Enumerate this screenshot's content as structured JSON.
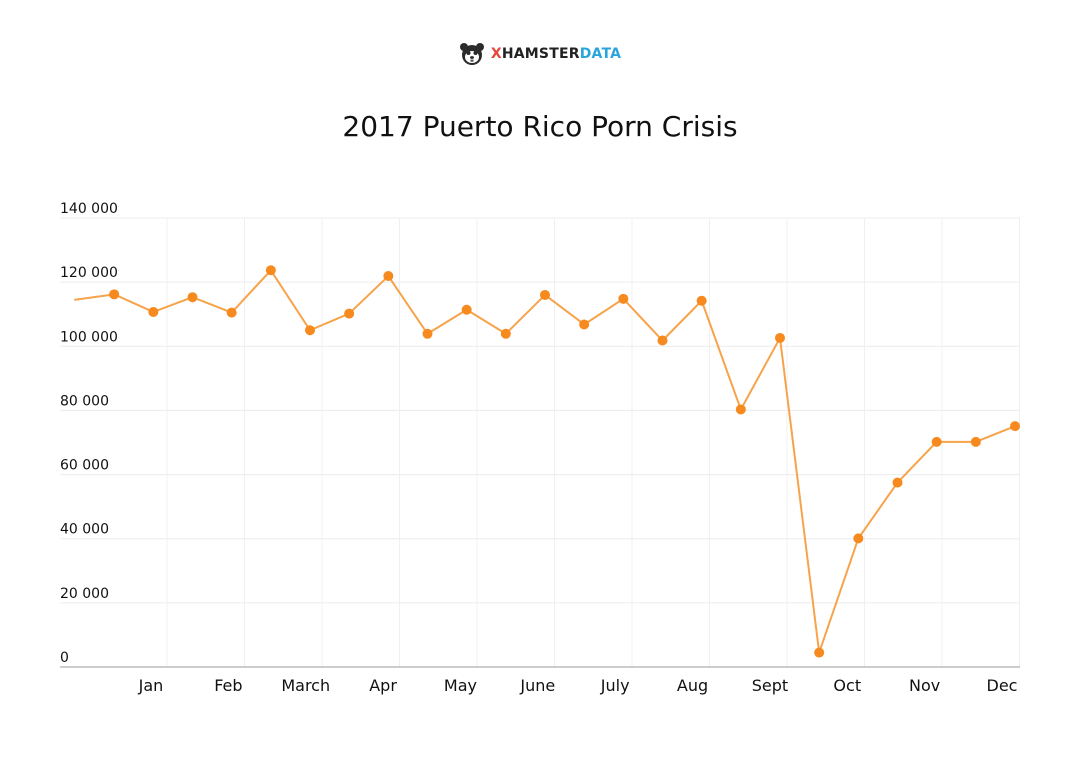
{
  "brand": {
    "x": "X",
    "hamster": "HAMSTER",
    "data": "DATA"
  },
  "chart_data": {
    "type": "line",
    "title": "2017 Puerto Rico Porn Crisis",
    "xlabel": "",
    "ylabel": "",
    "ylim": [
      0,
      140000
    ],
    "yticks": [
      0,
      20000,
      40000,
      60000,
      80000,
      100000,
      120000,
      140000
    ],
    "ytick_labels": [
      "0",
      "20 000",
      "40 000",
      "60 000",
      "80 000",
      "100 000",
      "120 000",
      "140 000"
    ],
    "xtick_labels": [
      "Jan",
      "Feb",
      "March",
      "Apr",
      "May",
      "June",
      "July",
      "Aug",
      "Sept",
      "Oct",
      "Nov",
      "Dec"
    ],
    "grid": true,
    "line_color": "#f7a34a",
    "point_color": "#f68a1e",
    "series": [
      {
        "values": [
          114500,
          116200,
          110700,
          115300,
          110500,
          123700,
          105000,
          110200,
          121900,
          103900,
          111400,
          103900,
          116000,
          106800,
          114800,
          101800,
          114200,
          80300,
          102600,
          4500,
          40100,
          57500,
          70200,
          70200,
          75100
        ]
      }
    ]
  }
}
